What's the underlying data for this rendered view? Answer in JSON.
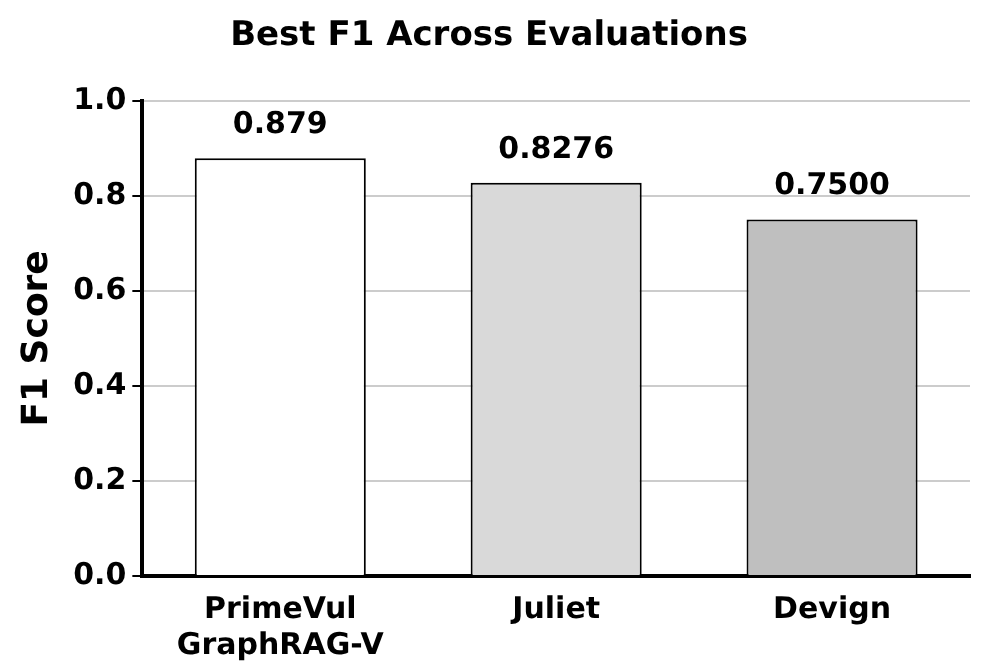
{
  "chart_data": {
    "type": "bar",
    "title": "Best F1 Across Evaluations",
    "ylabel": "F1 Score",
    "categories": [
      "PrimeVul\nGraphRAG-V",
      "Juliet",
      "Devign"
    ],
    "values": [
      0.879,
      0.8276,
      0.75
    ],
    "value_labels": [
      "0.879",
      "0.8276",
      "0.7500"
    ],
    "colors": [
      "#ffffff",
      "#d9d9d9",
      "#bfbfbf"
    ],
    "ylim": [
      0,
      1
    ],
    "yticks": [
      {
        "value": 0,
        "label": "0.0"
      },
      0.2,
      0.4,
      0.6,
      0.8,
      {
        "value": 1,
        "label": "1.0"
      }
    ],
    "grid": "y",
    "legend": false
  }
}
